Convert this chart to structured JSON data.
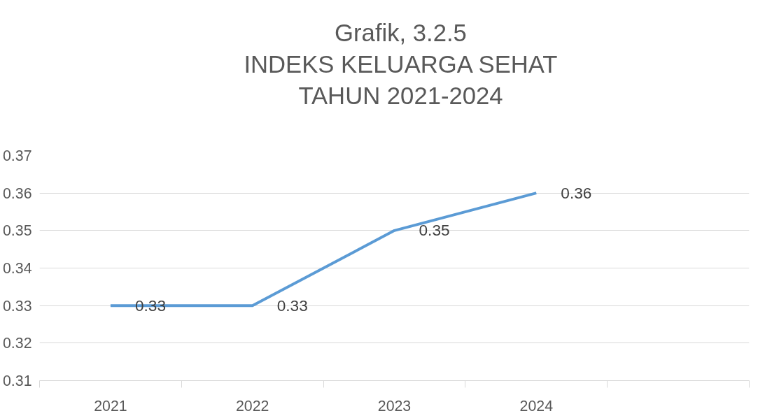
{
  "chart_data": {
    "type": "line",
    "title": "Grafik, 3.2.5\nINDEKS KELUARGA SEHAT\nTAHUN 2021-2024",
    "categories": [
      "2021",
      "2022",
      "2023",
      "2024",
      null
    ],
    "series": [
      {
        "color": "#5b9bd5",
        "values": [
          0.33,
          0.33,
          0.35,
          0.36,
          null
        ]
      }
    ],
    "ylim": [
      0.31,
      0.37
    ],
    "yticks": [
      0.31,
      0.32,
      0.33,
      0.34,
      0.35,
      0.36,
      0.37
    ],
    "grid": "y",
    "data_labels": true,
    "marker": "none",
    "line_style": "solid"
  }
}
